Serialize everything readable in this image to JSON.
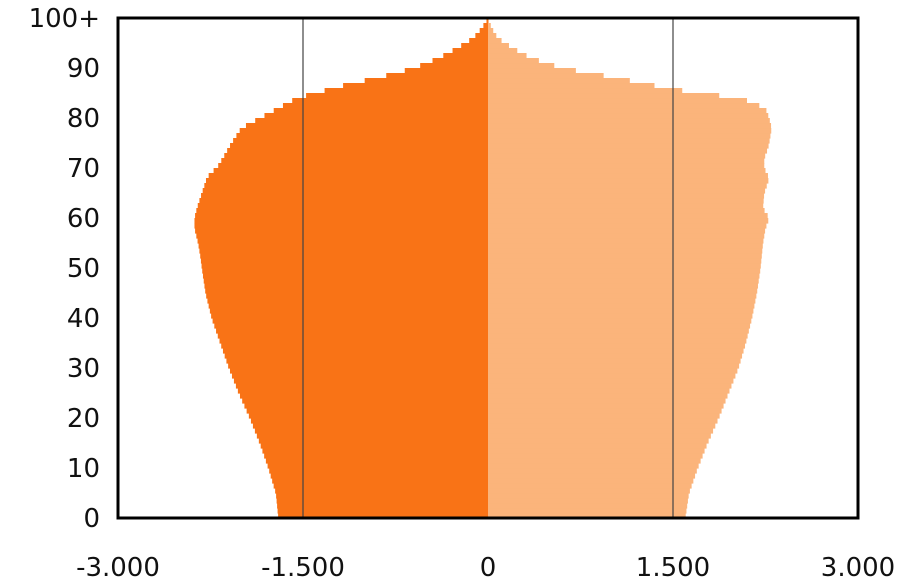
{
  "chart_data": {
    "type": "bar",
    "orientation": "horizontal",
    "subtype": "population-pyramid",
    "title": "",
    "xlabel": "",
    "ylabel": "",
    "xlim": [
      -3000,
      3000
    ],
    "ylim": [
      0,
      100
    ],
    "x_ticks": [
      {
        "value": -3000,
        "label": "-3.000"
      },
      {
        "value": -1500,
        "label": "-1.500"
      },
      {
        "value": 0,
        "label": "0"
      },
      {
        "value": 1500,
        "label": "1.500"
      },
      {
        "value": 3000,
        "label": "3.000"
      }
    ],
    "y_ticks": [
      {
        "value": 0,
        "label": "0"
      },
      {
        "value": 10,
        "label": "10"
      },
      {
        "value": 20,
        "label": "20"
      },
      {
        "value": 30,
        "label": "30"
      },
      {
        "value": 40,
        "label": "40"
      },
      {
        "value": 50,
        "label": "50"
      },
      {
        "value": 60,
        "label": "60"
      },
      {
        "value": 70,
        "label": "70"
      },
      {
        "value": 80,
        "label": "80"
      },
      {
        "value": 90,
        "label": "90"
      },
      {
        "value": 100,
        "label": "100+"
      }
    ],
    "vertical_gridlines": [
      -1500,
      1500
    ],
    "grid": "partial",
    "legend": "none",
    "series": [
      {
        "side": "left",
        "color": "#f97316",
        "ages": [
          0,
          5,
          10,
          15,
          20,
          25,
          30,
          35,
          40,
          45,
          50,
          52,
          55,
          58,
          60,
          62,
          65,
          68,
          69,
          70,
          72,
          75,
          78,
          80,
          82,
          84,
          85,
          86,
          87,
          88,
          90,
          92,
          94,
          96,
          98,
          100
        ],
        "values": [
          -1700,
          -1720,
          -1780,
          -1850,
          -1930,
          -2020,
          -2100,
          -2170,
          -2240,
          -2290,
          -2320,
          -2330,
          -2350,
          -2380,
          -2380,
          -2360,
          -2320,
          -2280,
          -2250,
          -2200,
          -2150,
          -2080,
          -2000,
          -1850,
          -1700,
          -1550,
          -1400,
          -1250,
          -1100,
          -900,
          -600,
          -400,
          -250,
          -120,
          -50,
          0
        ]
      },
      {
        "side": "right",
        "color": "#fbb47b",
        "ages": [
          0,
          5,
          10,
          15,
          20,
          25,
          30,
          35,
          40,
          45,
          50,
          55,
          58,
          60,
          62,
          65,
          68,
          69,
          70,
          72,
          74,
          75,
          78,
          80,
          82,
          84,
          85,
          86,
          87,
          88,
          90,
          92,
          94,
          96,
          98,
          100
        ],
        "values": [
          1600,
          1630,
          1700,
          1780,
          1870,
          1950,
          2030,
          2090,
          2140,
          2180,
          2210,
          2230,
          2250,
          2280,
          2230,
          2240,
          2280,
          2260,
          2240,
          2240,
          2270,
          2280,
          2300,
          2280,
          2250,
          2050,
          1700,
          1450,
          1250,
          1050,
          600,
          350,
          200,
          80,
          30,
          0
        ]
      }
    ]
  }
}
